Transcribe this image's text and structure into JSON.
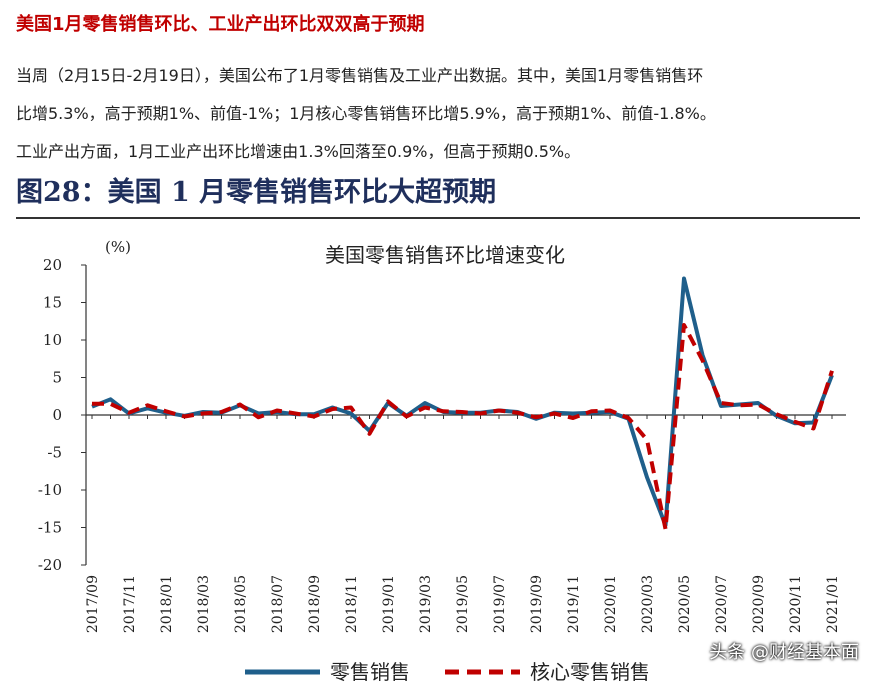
{
  "article": {
    "headline": "美国1月零售销售环比、工业产出环比双双高于预期",
    "lines": [
      "当周（2月15日-2月19日），美国公布了1月零售销售及工业产出数据。其中，美国1月零售销售环",
      "比增5.3%，高于预期1%、前值-1%；1月核心零售销售环比增5.9%，高于预期1%、前值-1.8%。",
      "工业产出方面，1月工业产出环比增速由1.3%回落至0.9%，但高于预期0.5%。"
    ],
    "figure_title": "图28：美国 1 月零售销售环比大超预期",
    "watermark": "头条 @财经基本面"
  },
  "chart_data": {
    "type": "line",
    "title": "美国零售销售环比增速变化",
    "unit_label": "(%)",
    "ylim": [
      -20,
      20
    ],
    "yticks": [
      20,
      15,
      10,
      5,
      0,
      -5,
      -10,
      -15,
      -20
    ],
    "x_tick_labels": [
      "2017/09",
      "2017/11",
      "2018/01",
      "2018/03",
      "2018/05",
      "2018/07",
      "2018/09",
      "2018/11",
      "2019/01",
      "2019/03",
      "2019/05",
      "2019/07",
      "2019/09",
      "2019/11",
      "2020/01",
      "2020/03",
      "2020/05",
      "2020/07",
      "2020/09",
      "2020/11",
      "2021/01"
    ],
    "legend_position": "bottom",
    "grid": false,
    "x": [
      "2017/09",
      "2017/10",
      "2017/11",
      "2017/12",
      "2018/01",
      "2018/02",
      "2018/03",
      "2018/04",
      "2018/05",
      "2018/06",
      "2018/07",
      "2018/08",
      "2018/09",
      "2018/10",
      "2018/11",
      "2018/12",
      "2019/01",
      "2019/02",
      "2019/03",
      "2019/04",
      "2019/05",
      "2019/06",
      "2019/07",
      "2019/08",
      "2019/09",
      "2019/10",
      "2019/11",
      "2019/12",
      "2020/01",
      "2020/02",
      "2020/03",
      "2020/04",
      "2020/05",
      "2020/06",
      "2020/07",
      "2020/08",
      "2020/09",
      "2020/10",
      "2020/11",
      "2020/12",
      "2021/01"
    ],
    "series": [
      {
        "name": "零售销售",
        "color": "#1f5f8b",
        "style": "solid",
        "values": [
          1.1,
          2.1,
          0.2,
          0.9,
          0.3,
          -0.1,
          0.4,
          0.3,
          1.3,
          0.2,
          0.4,
          0.1,
          0.1,
          1.0,
          0.2,
          -2.1,
          1.6,
          -0.1,
          1.6,
          0.4,
          0.3,
          0.3,
          0.6,
          0.4,
          -0.5,
          0.3,
          0.2,
          0.3,
          0.4,
          -0.5,
          -8.3,
          -14.7,
          18.2,
          8.0,
          1.2,
          1.4,
          1.6,
          -0.1,
          -1.1,
          -1.0,
          5.3
        ]
      },
      {
        "name": "核心零售销售",
        "color": "#c00000",
        "style": "dashed",
        "values": [
          1.5,
          1.5,
          0.3,
          1.3,
          0.5,
          -0.2,
          0.2,
          0.4,
          1.4,
          -0.3,
          0.6,
          0.2,
          -0.2,
          0.8,
          1.0,
          -2.5,
          1.8,
          -0.2,
          1.0,
          0.5,
          0.4,
          0.2,
          0.6,
          0.3,
          -0.3,
          0.2,
          -0.4,
          0.5,
          0.6,
          -0.4,
          -3.3,
          -15.2,
          12.0,
          7.3,
          1.6,
          1.3,
          1.4,
          0.1,
          -0.9,
          -1.8,
          5.9
        ]
      }
    ]
  }
}
